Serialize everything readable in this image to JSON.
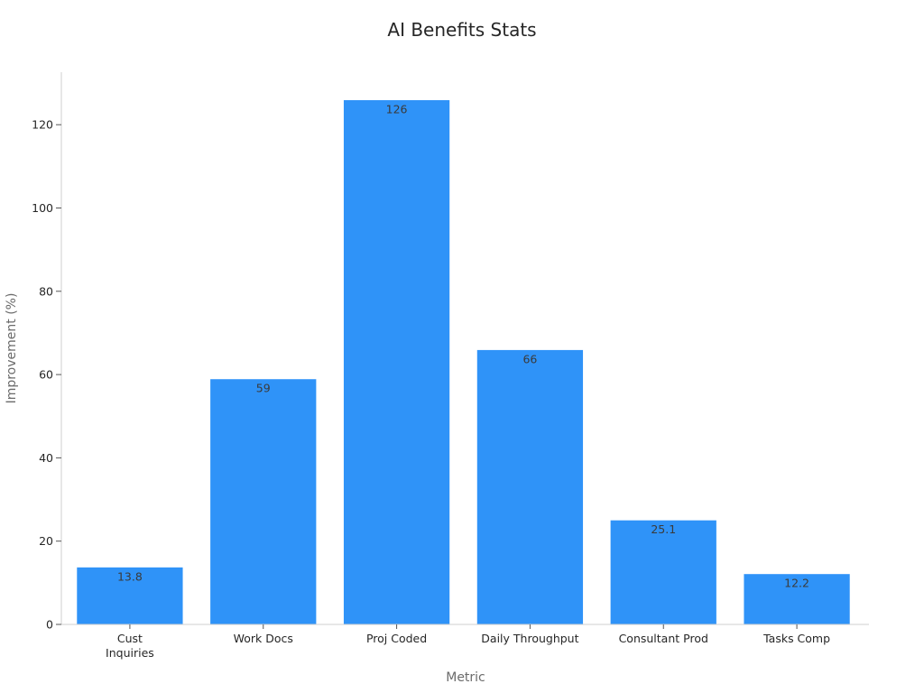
{
  "chart_data": {
    "type": "bar",
    "title": "AI Benefits Stats",
    "xlabel": "Metric",
    "ylabel": "Improvement (%)",
    "categories": [
      [
        "Cust",
        "Inquiries"
      ],
      [
        "Work Docs"
      ],
      [
        "Proj Coded"
      ],
      [
        "Daily Throughput"
      ],
      [
        "Consultant Prod"
      ],
      [
        "Tasks Comp"
      ]
    ],
    "values": [
      13.8,
      59,
      126,
      66,
      25.1,
      12.2
    ],
    "data_labels": [
      "13.8",
      "59",
      "126",
      "66",
      "25.1",
      "12.2"
    ],
    "ylim": [
      0,
      132
    ],
    "yticks": [
      0,
      20,
      40,
      60,
      80,
      100,
      120
    ],
    "grid": false,
    "legend": "none",
    "colors": {
      "bar": "#2f93f8",
      "bar_edge": "#ffffff"
    }
  }
}
